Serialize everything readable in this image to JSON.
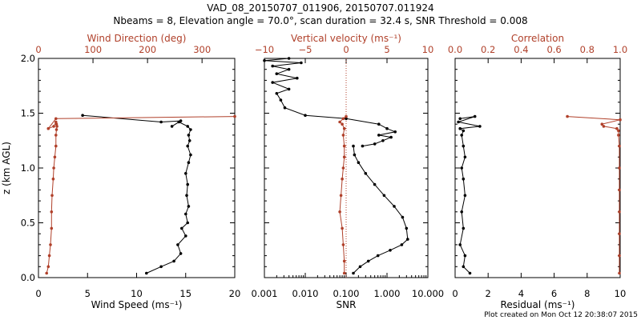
{
  "title_line1": "VAD_08_20150707_011906, 20150707.011924",
  "title_line2": "Nbeams = 8, Elevation angle = 70.0°, scan duration = 32.4 s, SNR Threshold = 0.008",
  "footer": "Plot created on Mon Oct 12 20:38:07 2015",
  "colors": {
    "black": "#000000",
    "red": "#b0402a"
  },
  "chart_data": [
    {
      "type": "line",
      "panel": "wind",
      "ylabel": "z (km AGL)",
      "ylim": [
        0,
        2.0
      ],
      "y_ticks": [
        "0.0",
        "0.5",
        "1.0",
        "1.5",
        "2.0"
      ],
      "bottom_axis": {
        "label": "Wind Speed (ms⁻¹)",
        "range": [
          0,
          20
        ],
        "ticks": [
          "0",
          "5",
          "10",
          "15",
          "20"
        ]
      },
      "top_axis": {
        "label": "Wind Direction (deg)",
        "range": [
          0,
          360
        ],
        "ticks": [
          "0",
          "100",
          "200",
          "300"
        ]
      },
      "series": [
        {
          "name": "Wind Speed",
          "axis": "bottom",
          "color": "black",
          "x": [
            11.0,
            12.5,
            13.8,
            14.5,
            14.2,
            15.0,
            14.6,
            15.2,
            15.0,
            15.3,
            15.1,
            15.2,
            15.0,
            15.3,
            15.5,
            15.2,
            15.4,
            15.3,
            15.5,
            15.2,
            14.3,
            13.6,
            14.5,
            12.5,
            4.5
          ],
          "y": [
            0.04,
            0.1,
            0.15,
            0.22,
            0.3,
            0.38,
            0.45,
            0.5,
            0.58,
            0.65,
            0.75,
            0.85,
            0.95,
            1.05,
            1.12,
            1.2,
            1.25,
            1.3,
            1.35,
            1.38,
            1.42,
            1.38,
            1.43,
            1.42,
            1.48
          ]
        },
        {
          "name": "Wind Direction",
          "axis": "top",
          "color": "red",
          "x": [
            15,
            18,
            20,
            22,
            24,
            24,
            25,
            27,
            28,
            30,
            32,
            32,
            33,
            34,
            33,
            32,
            28,
            18,
            32,
            360
          ],
          "y": [
            0.04,
            0.1,
            0.2,
            0.3,
            0.45,
            0.6,
            0.75,
            0.9,
            1.0,
            1.1,
            1.2,
            1.3,
            1.35,
            1.38,
            1.4,
            1.42,
            1.38,
            1.36,
            1.45,
            1.47
          ]
        }
      ]
    },
    {
      "type": "line",
      "panel": "vertical",
      "ylim": [
        0,
        2.0
      ],
      "bottom_axis": {
        "label": "SNR",
        "scale": "log",
        "range": [
          0.001,
          10
        ],
        "ticks": [
          "0.001",
          "0.010",
          "0.100",
          "1.000",
          "10.000"
        ]
      },
      "top_axis": {
        "label": "Vertical velocity (ms⁻¹)",
        "range": [
          -10,
          10
        ],
        "ticks": [
          "−10",
          "−5",
          "0",
          "5",
          "10"
        ]
      },
      "series": [
        {
          "name": "SNR",
          "axis": "bottom",
          "color": "black",
          "x": [
            0.15,
            0.22,
            0.35,
            0.6,
            1.2,
            2.3,
            3.2,
            3.0,
            2.4,
            1.5,
            0.85,
            0.5,
            0.3,
            0.2,
            0.16,
            0.15
          ],
          "y": [
            0.04,
            0.1,
            0.15,
            0.2,
            0.25,
            0.3,
            0.35,
            0.45,
            0.55,
            0.65,
            0.75,
            0.85,
            0.95,
            1.05,
            1.12,
            1.2
          ]
        },
        {
          "name": "Vertical velocity",
          "axis": "top",
          "color": "black",
          "x": [
            2.0,
            3.5,
            4.5,
            5.5,
            4.0,
            6.0,
            5.0,
            4.0,
            0.0,
            -5.0,
            -7.5,
            -8.0,
            -8.5,
            -7.0,
            -9.0,
            -6.0,
            -8.5,
            -7.0,
            -9.0,
            -5.5,
            -10.0,
            -7.0
          ],
          "y": [
            1.2,
            1.22,
            1.25,
            1.28,
            1.3,
            1.33,
            1.36,
            1.4,
            1.45,
            1.48,
            1.55,
            1.62,
            1.68,
            1.72,
            1.78,
            1.82,
            1.86,
            1.9,
            1.93,
            1.96,
            1.98,
            2.0
          ]
        },
        {
          "name": "SNR (red)",
          "axis": "bottom",
          "color": "red",
          "x": [
            0.09,
            0.09,
            0.085,
            0.08,
            0.07,
            0.075,
            0.08,
            0.085,
            0.09,
            0.09,
            0.085,
            0.09,
            0.08,
            0.07,
            0.085,
            0.1
          ],
          "y": [
            0.04,
            0.15,
            0.3,
            0.45,
            0.6,
            0.75,
            0.9,
            1.0,
            1.1,
            1.2,
            1.3,
            1.36,
            1.4,
            1.42,
            1.45,
            1.47
          ]
        }
      ]
    },
    {
      "type": "line",
      "panel": "correlation",
      "ylim": [
        0,
        2.0
      ],
      "bottom_axis": {
        "label": "Residual (ms⁻¹)",
        "range": [
          0,
          10
        ],
        "ticks": [
          "0",
          "2",
          "4",
          "6",
          "8",
          "10"
        ]
      },
      "top_axis": {
        "label": "Correlation",
        "range": [
          0,
          1.0
        ],
        "ticks": [
          "0.0",
          "0.2",
          "0.4",
          "0.6",
          "0.8",
          "1.0"
        ]
      },
      "series": [
        {
          "name": "Residual",
          "axis": "bottom",
          "color": "black",
          "x": [
            0.9,
            0.5,
            0.6,
            0.3,
            0.5,
            0.4,
            0.6,
            0.5,
            0.4,
            0.6,
            0.5,
            0.4,
            0.5,
            0.3,
            1.5,
            0.2,
            1.2,
            0.3
          ],
          "y": [
            0.04,
            0.1,
            0.2,
            0.3,
            0.45,
            0.6,
            0.75,
            0.9,
            1.0,
            1.1,
            1.2,
            1.3,
            1.34,
            1.36,
            1.38,
            1.42,
            1.47,
            1.45
          ]
        },
        {
          "name": "Correlation",
          "axis": "top",
          "color": "red",
          "x": [
            0.995,
            0.995,
            0.995,
            0.995,
            0.995,
            0.995,
            0.995,
            0.99,
            0.99,
            0.98,
            0.9,
            0.89,
            1.0,
            0.68
          ],
          "y": [
            0.04,
            0.2,
            0.4,
            0.6,
            0.8,
            1.0,
            1.2,
            1.3,
            1.34,
            1.36,
            1.38,
            1.4,
            1.44,
            1.47
          ]
        }
      ]
    }
  ]
}
